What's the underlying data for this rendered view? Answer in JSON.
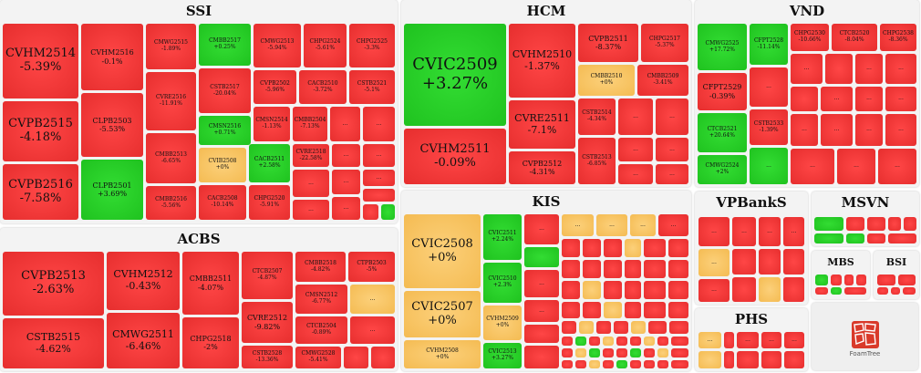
{
  "logo": {
    "text": "FoamTree"
  },
  "chart_data": {
    "type": "treemap",
    "groups": [
      {
        "name": "SSI",
        "items": [
          {
            "label": "CVHM2514",
            "change": "-5.39%",
            "color": "red"
          },
          {
            "label": "CVHM2516",
            "change": "-0.1%",
            "color": "red"
          },
          {
            "label": "CMWG2515",
            "change": "-1.89%",
            "color": "red"
          },
          {
            "label": "CMBB2517",
            "change": "+0.25%",
            "color": "green"
          },
          {
            "label": "CMWG2513",
            "change": "-5.94%",
            "color": "red"
          },
          {
            "label": "CHPG2524",
            "change": "-5.61%",
            "color": "red"
          },
          {
            "label": "CHPG2525",
            "change": "-3.3%",
            "color": "red"
          },
          {
            "label": "CVPB2515",
            "change": "-4.18%",
            "color": "red"
          },
          {
            "label": "CLPB2503",
            "change": "-5.53%",
            "color": "red"
          },
          {
            "label": "CVRE2516",
            "change": "-11.91%",
            "color": "red"
          },
          {
            "label": "CSTB2517",
            "change": "-20.04%",
            "color": "red"
          },
          {
            "label": "CVPB2502",
            "change": "-5.96%",
            "color": "red"
          },
          {
            "label": "CACB2510",
            "change": "-3.72%",
            "color": "red"
          },
          {
            "label": "CSTB2521",
            "change": "-5.1%",
            "color": "red"
          },
          {
            "label": "CMSN2516",
            "change": "+0.71%",
            "color": "green"
          },
          {
            "label": "CMSN2514",
            "change": "-1.13%",
            "color": "red"
          },
          {
            "label": "CMBB2504",
            "change": "-7.13%",
            "color": "red"
          },
          {
            "label": "CMBB2513",
            "change": "-6.65%",
            "color": "red"
          },
          {
            "label": "CVIB2508",
            "change": "+0%",
            "color": "amber"
          },
          {
            "label": "CACB2511",
            "change": "+2.58%",
            "color": "green"
          },
          {
            "label": "CVRE2518",
            "change": "-22.58%",
            "color": "red"
          },
          {
            "label": "CVPB2516",
            "change": "-7.58%",
            "color": "red"
          },
          {
            "label": "CLPB2501",
            "change": "+3.69%",
            "color": "green"
          },
          {
            "label": "CMBB2516",
            "change": "-5.56%",
            "color": "red"
          },
          {
            "label": "CACB2508",
            "change": "-10.14%",
            "color": "red"
          },
          {
            "label": "CHPG2520",
            "change": "-5.91%",
            "color": "red"
          }
        ]
      },
      {
        "name": "HCM",
        "items": [
          {
            "label": "CVIC2509",
            "change": "+3.27%",
            "color": "green"
          },
          {
            "label": "CVHM2510",
            "change": "-1.37%",
            "color": "red"
          },
          {
            "label": "CVPB2511",
            "change": "-8.37%",
            "color": "red"
          },
          {
            "label": "CHPG2517",
            "change": "-5.37%",
            "color": "red"
          },
          {
            "label": "CMBB2510",
            "change": "+0%",
            "color": "amber"
          },
          {
            "label": "CMBB2509",
            "change": "-3.41%",
            "color": "red"
          },
          {
            "label": "CVRE2511",
            "change": "-7.1%",
            "color": "red"
          },
          {
            "label": "CSTB2514",
            "change": "-4.34%",
            "color": "red"
          },
          {
            "label": "CVHM2511",
            "change": "-0.09%",
            "color": "red"
          },
          {
            "label": "CVPB2512",
            "change": "-4.31%",
            "color": "red"
          },
          {
            "label": "CSTB2513",
            "change": "-6.85%",
            "color": "red"
          }
        ]
      },
      {
        "name": "VND",
        "items": [
          {
            "label": "CMWG2525",
            "change": "+17.72%",
            "color": "green"
          },
          {
            "label": "CFPT2528",
            "change": "-11.14%",
            "color": "red"
          },
          {
            "label": "CHPG2530",
            "change": "-10.66%",
            "color": "red"
          },
          {
            "label": "CTCB2520",
            "change": "-8.04%",
            "color": "red"
          },
          {
            "label": "CHPG2538",
            "change": "-8.36%",
            "color": "red"
          },
          {
            "label": "CFPT2529",
            "change": "-0.39%",
            "color": "red"
          },
          {
            "label": "CTCB2521",
            "change": "+20.64%",
            "color": "green"
          },
          {
            "label": "CSTB2533",
            "change": "-1.39%",
            "color": "red"
          },
          {
            "label": "CMWG2524",
            "change": "+2%",
            "color": "green"
          }
        ]
      },
      {
        "name": "ACBS",
        "items": [
          {
            "label": "CVPB2513",
            "change": "-2.63%",
            "color": "red"
          },
          {
            "label": "CVHM2512",
            "change": "-0.43%",
            "color": "red"
          },
          {
            "label": "CMBB2511",
            "change": "-4.07%",
            "color": "red"
          },
          {
            "label": "CTCB2507",
            "change": "-4.87%",
            "color": "red"
          },
          {
            "label": "CMBB2518",
            "change": "-4.82%",
            "color": "red"
          },
          {
            "label": "CTPB2503",
            "change": "-5%",
            "color": "red"
          },
          {
            "label": "CMSN2512",
            "change": "-6.77%",
            "color": "red"
          },
          {
            "label": "CVRE2512",
            "change": "-9.82%",
            "color": "red"
          },
          {
            "label": "CTCB2504",
            "change": "-0.89%",
            "color": "red"
          },
          {
            "label": "CSTB2515",
            "change": "-4.62%",
            "color": "red"
          },
          {
            "label": "CMWG2511",
            "change": "-6.46%",
            "color": "red"
          },
          {
            "label": "CHPG2518",
            "change": "-2%",
            "color": "red"
          },
          {
            "label": "CSTB2528",
            "change": "-13.36%",
            "color": "red"
          },
          {
            "label": "CMWG2528",
            "change": "-5.41%",
            "color": "red"
          }
        ]
      },
      {
        "name": "KIS",
        "items": [
          {
            "label": "CVIC2508",
            "change": "+0%",
            "color": "amber"
          },
          {
            "label": "CVIC2511",
            "change": "+2.24%",
            "color": "green"
          },
          {
            "label": "CVIC2510",
            "change": "+2.3%",
            "color": "green"
          },
          {
            "label": "CVIC2507",
            "change": "+0%",
            "color": "amber"
          },
          {
            "label": "CVHM2509",
            "change": "+0%",
            "color": "amber"
          },
          {
            "label": "CVHM2508",
            "change": "+0%",
            "color": "amber"
          },
          {
            "label": "CVIC2513",
            "change": "+3.27%",
            "color": "green"
          }
        ]
      },
      {
        "name": "VPBankS",
        "items": []
      },
      {
        "name": "MSVN",
        "items": []
      },
      {
        "name": "MBS",
        "items": []
      },
      {
        "name": "BSI",
        "items": []
      },
      {
        "name": "PHS",
        "items": []
      }
    ],
    "small_cell_label": "..."
  }
}
